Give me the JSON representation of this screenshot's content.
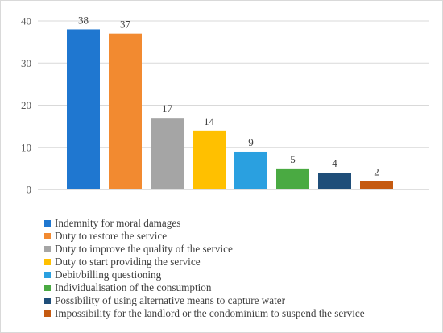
{
  "chart_data": {
    "type": "bar",
    "title": "",
    "xlabel": "",
    "ylabel": "",
    "ylim": [
      0,
      40
    ],
    "yticks": [
      0,
      10,
      20,
      30,
      40
    ],
    "grid": true,
    "legend_position": "bottom-left",
    "categories": [
      "Indemnity for moral damages",
      "Duty to restore the service",
      "Duty to improve the quality of the service",
      "Duty to start providing the service",
      "Debit/billing questioning",
      "Individualisation of the consumption",
      "Possibility of using alternative means to capture water",
      "Impossibility for the landlord or the condominium to suspend the service"
    ],
    "values": [
      38,
      37,
      17,
      14,
      9,
      5,
      4,
      2
    ],
    "colors": [
      "#1f77d0",
      "#f28a30",
      "#a5a5a5",
      "#ffc000",
      "#2aa0e0",
      "#4aaa42",
      "#1f4e79",
      "#c55a11"
    ]
  }
}
